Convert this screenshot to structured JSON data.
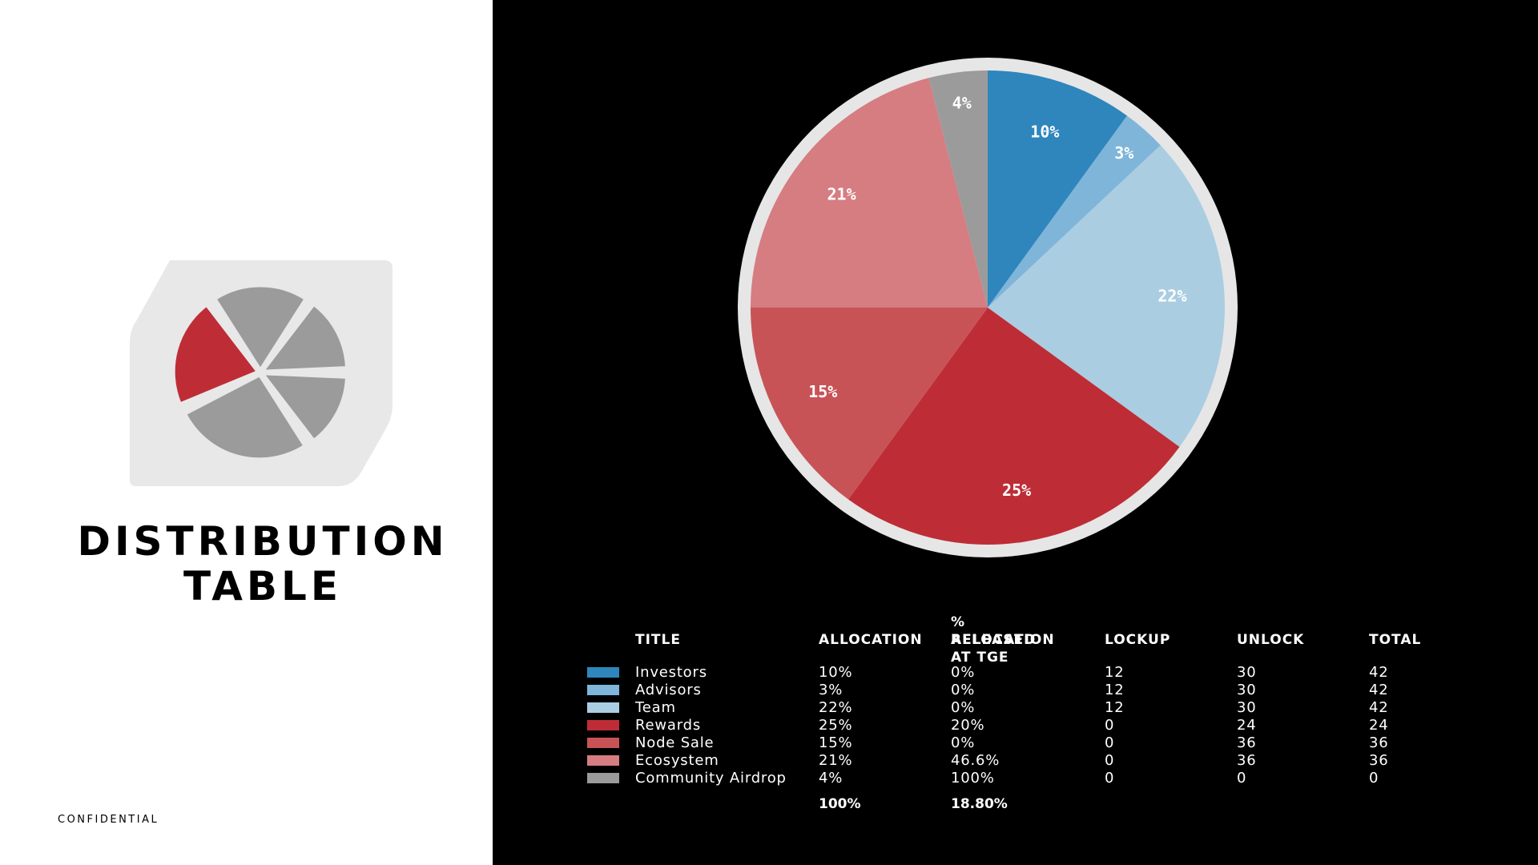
{
  "page": {
    "title_line1": "DISTRIBUTION",
    "title_line2": "TABLE",
    "confidential": "CONFIDENTIAL"
  },
  "colors": {
    "investors": "#2e86bd",
    "advisors": "#7fb5d9",
    "team": "#abcde2",
    "rewards": "#be2d36",
    "node_sale": "#c85357",
    "ecosystem": "#d67d81",
    "community_airdrop": "#9b9b9b",
    "logo_highlight": "#be2d36",
    "logo_gray": "#9b9b9b"
  },
  "chart_data": {
    "type": "pie",
    "slices": [
      {
        "name": "Investors",
        "value": 10,
        "label": "10%",
        "color": "#2e86bd"
      },
      {
        "name": "Advisors",
        "value": 3,
        "label": "3%",
        "color": "#7fb5d9"
      },
      {
        "name": "Team",
        "value": 22,
        "label": "22%",
        "color": "#abcde2"
      },
      {
        "name": "Rewards",
        "value": 25,
        "label": "25%",
        "color": "#be2d36"
      },
      {
        "name": "Node Sale",
        "value": 15,
        "label": "15%",
        "color": "#c85357"
      },
      {
        "name": "Ecosystem",
        "value": 21,
        "label": "21%",
        "color": "#d67d81"
      },
      {
        "name": "Community Airdrop",
        "value": 4,
        "label": "4%",
        "color": "#9b9b9b"
      }
    ],
    "start": "12 o'clock",
    "direction": "clockwise"
  },
  "table": {
    "headers": {
      "title": "TITLE",
      "allocation": "ALLOCATION",
      "released_line1": "% ALLOCATION",
      "released_line2": "RELEASED AT TGE",
      "lockup": "LOCKUP",
      "unlock": "UNLOCK",
      "total": "TOTAL"
    },
    "rows": [
      {
        "title": "Investors",
        "allocation": "10%",
        "released": "0%",
        "lockup": "12",
        "unlock": "30",
        "total": "42",
        "color": "#2e86bd"
      },
      {
        "title": "Advisors",
        "allocation": "3%",
        "released": "0%",
        "lockup": "12",
        "unlock": "30",
        "total": "42",
        "color": "#7fb5d9"
      },
      {
        "title": "Team",
        "allocation": "22%",
        "released": "0%",
        "lockup": "12",
        "unlock": "30",
        "total": "42",
        "color": "#abcde2"
      },
      {
        "title": "Rewards",
        "allocation": "25%",
        "released": "20%",
        "lockup": "0",
        "unlock": "24",
        "total": "24",
        "color": "#be2d36"
      },
      {
        "title": "Node Sale",
        "allocation": "15%",
        "released": "0%",
        "lockup": "0",
        "unlock": "36",
        "total": "36",
        "color": "#c85357"
      },
      {
        "title": "Ecosystem",
        "allocation": "21%",
        "released": "46.6%",
        "lockup": "0",
        "unlock": "36",
        "total": "36",
        "color": "#d67d81"
      },
      {
        "title": "Community Airdrop",
        "allocation": "4%",
        "released": "100%",
        "lockup": "0",
        "unlock": "0",
        "total": "0",
        "color": "#9b9b9b"
      }
    ],
    "totals": {
      "allocation": "100%",
      "released": "18.80%"
    }
  }
}
